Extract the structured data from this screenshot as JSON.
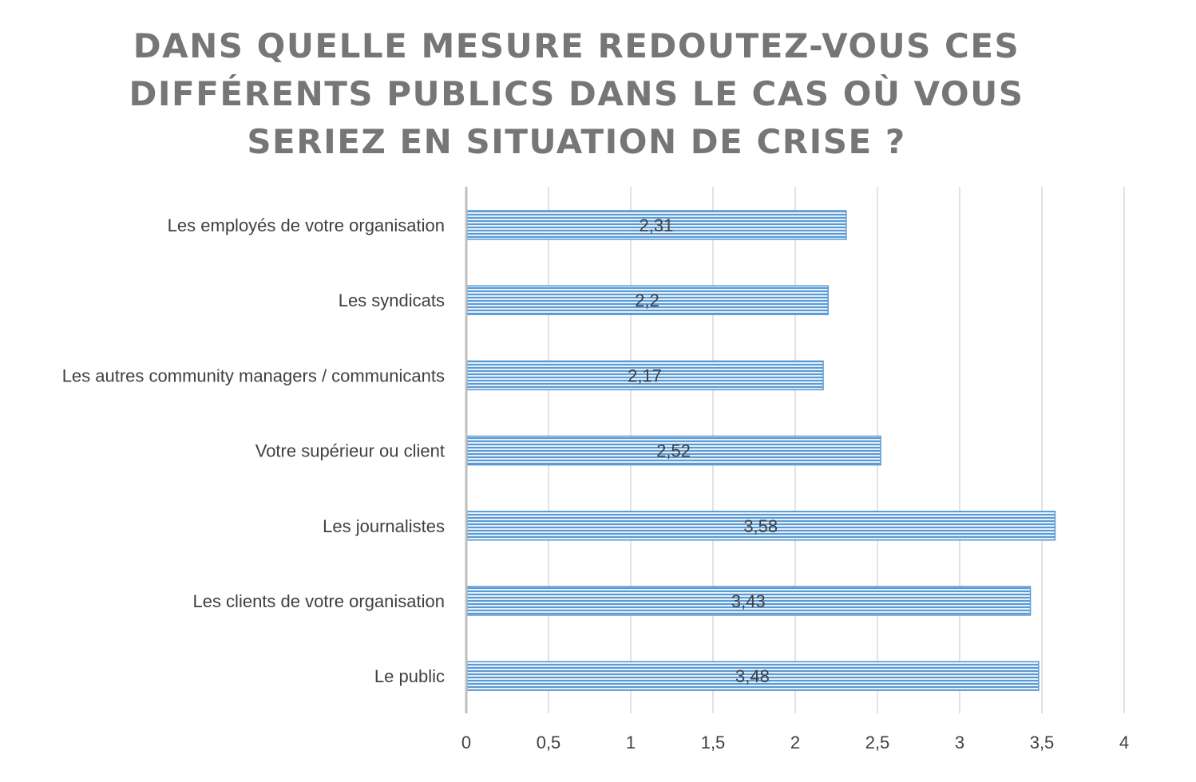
{
  "chart_data": {
    "type": "bar",
    "orientation": "horizontal",
    "title_lines": [
      "DANS QUELLE MESURE REDOUTEZ-VOUS CES",
      "DIFFÉRENTS PUBLICS DANS LE CAS OÙ VOUS",
      "SERIEZ EN SITUATION DE CRISE ?"
    ],
    "categories": [
      "Les employés de votre organisation",
      "Les syndicats",
      "Les autres community managers / communicants",
      "Votre supérieur ou client",
      "Les journalistes",
      "Les clients de votre organisation",
      "Le public"
    ],
    "values": [
      2.31,
      2.2,
      2.17,
      2.52,
      3.58,
      3.43,
      3.48
    ],
    "value_labels": [
      "2,31",
      "2,2",
      "2,17",
      "2,52",
      "3,58",
      "3,43",
      "3,48"
    ],
    "xlim": [
      0,
      4
    ],
    "ticks": [
      0,
      0.5,
      1,
      1.5,
      2,
      2.5,
      3,
      3.5,
      4
    ],
    "tick_labels": [
      "0",
      "0,5",
      "1",
      "1,5",
      "2",
      "2,5",
      "3",
      "3,5",
      "4"
    ],
    "grid": true,
    "legend": "none",
    "bar_color": "#5b9bd5",
    "bar_fill_light": "#e3eef9",
    "grid_color": "#d9d9d9",
    "axis_color": "#bfbfbf"
  }
}
